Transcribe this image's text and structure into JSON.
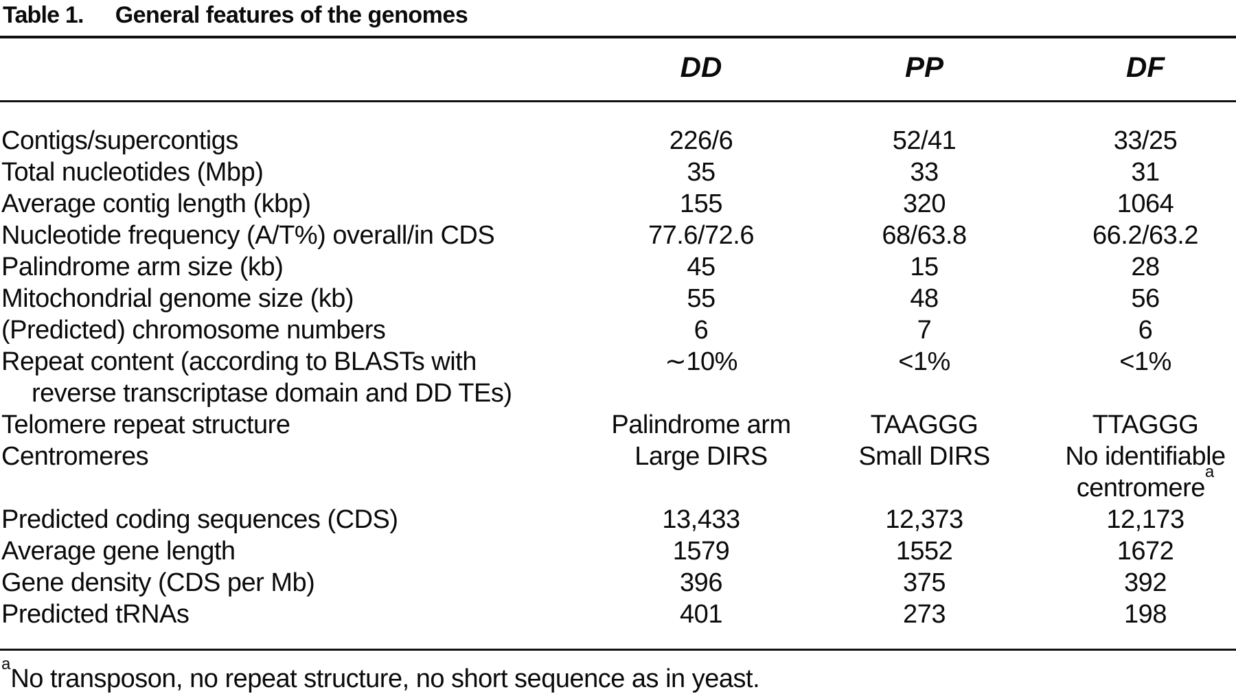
{
  "title": {
    "label": "Table 1.",
    "text": "General features of the genomes"
  },
  "table": {
    "columns": [
      "DD",
      "PP",
      "DF"
    ],
    "rows": [
      {
        "label": "Contigs/supercontigs",
        "values": [
          "226/6",
          "52/41",
          "33/25"
        ]
      },
      {
        "label": "Total nucleotides (Mbp)",
        "values": [
          "35",
          "33",
          "31"
        ]
      },
      {
        "label": "Average contig length (kbp)",
        "values": [
          "155",
          "320",
          "1064"
        ]
      },
      {
        "label": "Nucleotide frequency (A/T%) overall/in CDS",
        "values": [
          "77.6/72.6",
          "68/63.8",
          "66.2/63.2"
        ]
      },
      {
        "label": "Palindrome arm size (kb)",
        "values": [
          "45",
          "15",
          "28"
        ]
      },
      {
        "label": "Mitochondrial genome size (kb)",
        "values": [
          "55",
          "48",
          "56"
        ]
      },
      {
        "label": "(Predicted) chromosome numbers",
        "values": [
          "6",
          "7",
          "6"
        ]
      },
      {
        "label": "Repeat content (according to BLASTs with\nreverse transcriptase domain and DD TEs)",
        "values": [
          "∼10%",
          "<1%",
          "<1%"
        ]
      },
      {
        "label": "Telomere repeat structure",
        "values": [
          "Palindrome arm",
          "TAAGGG",
          "TTAGGG"
        ]
      },
      {
        "label": "Centromeres",
        "values": [
          "Large DIRS",
          "Small DIRS",
          "No identifiable\ncentromere^a"
        ]
      },
      {
        "label": "Predicted coding sequences (CDS)",
        "values": [
          "13,433",
          "12,373",
          "12,173"
        ]
      },
      {
        "label": "Average gene length",
        "values": [
          "1579",
          "1552",
          "1672"
        ]
      },
      {
        "label": "Gene density (CDS per Mb)",
        "values": [
          "396",
          "375",
          "392"
        ]
      },
      {
        "label": "Predicted tRNAs",
        "values": [
          "401",
          "273",
          "198"
        ]
      }
    ]
  },
  "footnote": {
    "sup": "a",
    "text": "No transposon, no repeat structure, no short sequence as in yeast."
  }
}
